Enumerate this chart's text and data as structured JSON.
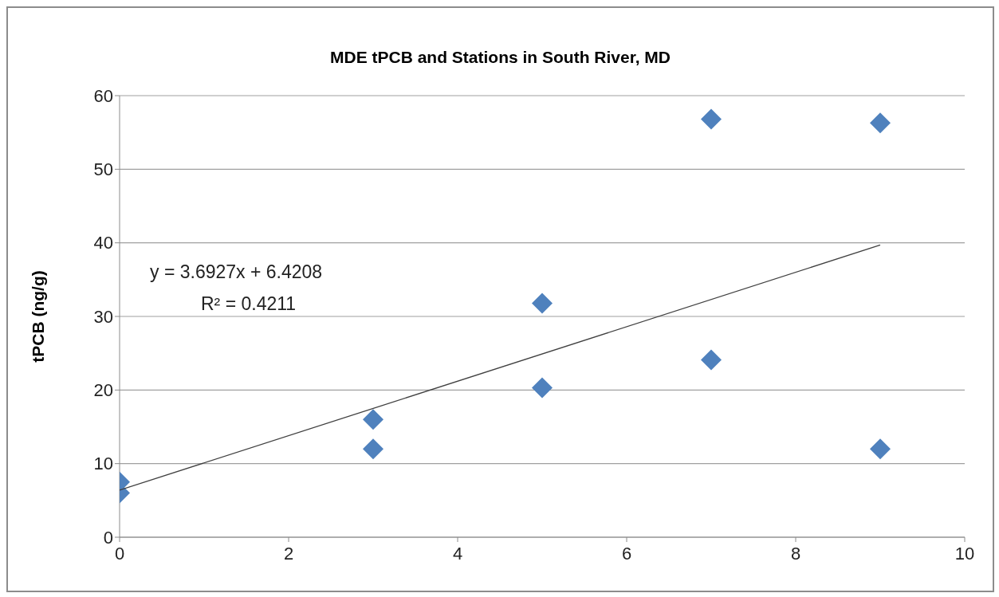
{
  "chart_data": {
    "type": "scatter",
    "title": "MDE tPCB and Stations in South River, MD",
    "ylabel": "tPCB (ng/g)",
    "series": [
      {
        "color": "#4f81bd",
        "marker": "diamond",
        "x": [
          0,
          0,
          3,
          3,
          5,
          5,
          7,
          7,
          9,
          9
        ],
        "values": [
          7.5,
          6,
          16,
          12,
          31.8,
          20.3,
          56.8,
          24.1,
          56.3,
          12
        ]
      },
      {
        "type": "line",
        "color": "#404040",
        "marker": "none",
        "x": [
          0,
          9
        ],
        "values": [
          6.4,
          39.7
        ]
      }
    ],
    "annotations": [
      "y = 3.6927x + 6.4208",
      "R² = 0.4211"
    ],
    "xlim": [
      0,
      10
    ],
    "xticks": [
      0,
      2,
      4,
      6,
      8,
      10
    ],
    "ylim": [
      0,
      60
    ],
    "yticks": [
      0,
      10,
      20,
      30,
      40,
      50,
      60
    ],
    "grid": "y",
    "legend": false
  }
}
